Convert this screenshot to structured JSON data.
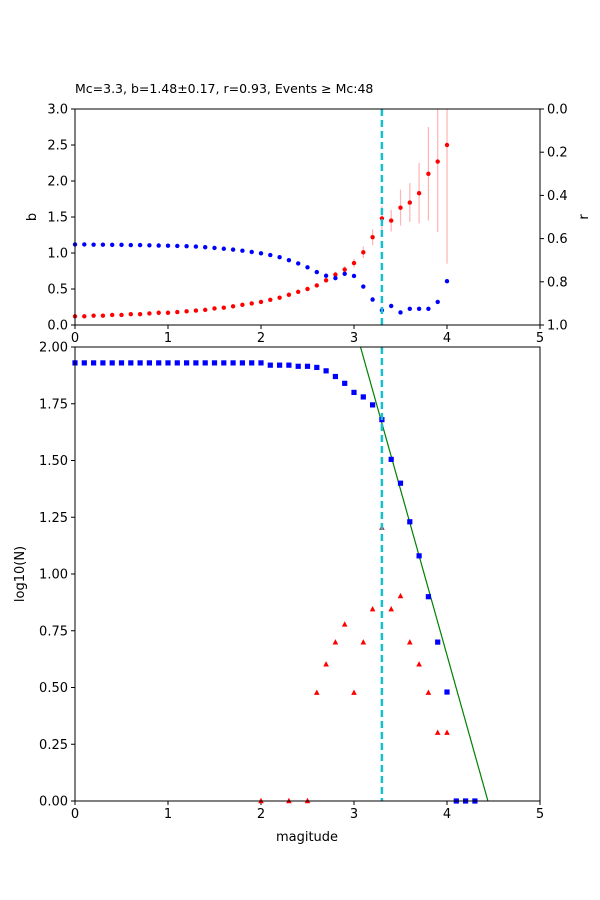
{
  "chart_data": [
    {
      "type": "scatter",
      "title": "Mc=3.3, b=1.48±0.17, r=0.93, Events ≥ Mc:48",
      "xlabel": "",
      "ylabel": "b",
      "ylabel_right": "r",
      "xlim": [
        0,
        5
      ],
      "ylim": [
        0,
        3
      ],
      "ylim_right": [
        1,
        0
      ],
      "x_ticks": [
        "0",
        "1",
        "2",
        "3",
        "4",
        "5"
      ],
      "y_ticks": [
        "0.0",
        "0.5",
        "1.0",
        "1.5",
        "2.0",
        "2.5",
        "3.0"
      ],
      "y_ticks_right": [
        "0.0",
        "0.2",
        "0.4",
        "0.6",
        "0.8",
        "1.0"
      ],
      "mc": 3.3,
      "mc_color": "#17becf",
      "series": [
        {
          "color": "#ff0000",
          "marker": "circle",
          "axis": "left",
          "x": [
            0.0,
            0.1,
            0.2,
            0.3,
            0.4,
            0.5,
            0.6,
            0.7,
            0.8,
            0.9,
            1.0,
            1.1,
            1.2,
            1.3,
            1.4,
            1.5,
            1.6,
            1.7,
            1.8,
            1.9,
            2.0,
            2.1,
            2.2,
            2.3,
            2.4,
            2.5,
            2.6,
            2.7,
            2.8,
            2.9,
            3.0,
            3.1,
            3.2,
            3.3,
            3.4,
            3.5,
            3.6,
            3.7,
            3.8,
            3.9,
            4.0
          ],
          "y": [
            0.12,
            0.12,
            0.13,
            0.13,
            0.14,
            0.14,
            0.15,
            0.15,
            0.16,
            0.17,
            0.17,
            0.18,
            0.19,
            0.2,
            0.21,
            0.23,
            0.24,
            0.26,
            0.28,
            0.3,
            0.32,
            0.35,
            0.38,
            0.42,
            0.46,
            0.5,
            0.55,
            0.62,
            0.7,
            0.77,
            0.86,
            1.01,
            1.22,
            1.48,
            1.45,
            1.63,
            1.7,
            1.83,
            2.1,
            2.27,
            2.5
          ],
          "yerr": [
            0.003,
            0.003,
            0.003,
            0.003,
            0.004,
            0.004,
            0.004,
            0.004,
            0.004,
            0.005,
            0.005,
            0.005,
            0.005,
            0.006,
            0.006,
            0.007,
            0.007,
            0.008,
            0.009,
            0.01,
            0.01,
            0.012,
            0.014,
            0.016,
            0.018,
            0.02,
            0.025,
            0.03,
            0.04,
            0.05,
            0.06,
            0.08,
            0.11,
            0.17,
            0.15,
            0.25,
            0.27,
            0.42,
            0.65,
            0.98,
            1.65
          ]
        },
        {
          "color": "#0000ff",
          "marker": "circle",
          "axis": "right",
          "x": [
            0.0,
            0.1,
            0.2,
            0.3,
            0.4,
            0.5,
            0.6,
            0.7,
            0.8,
            0.9,
            1.0,
            1.1,
            1.2,
            1.3,
            1.4,
            1.5,
            1.6,
            1.7,
            1.8,
            1.9,
            2.0,
            2.1,
            2.2,
            2.3,
            2.4,
            2.5,
            2.6,
            2.7,
            2.8,
            2.9,
            3.0,
            3.1,
            3.2,
            3.3,
            3.4,
            3.5,
            3.6,
            3.7,
            3.8,
            3.9,
            4.0
          ],
          "y": [
            0.627,
            0.627,
            0.628,
            0.628,
            0.629,
            0.629,
            0.63,
            0.63,
            0.631,
            0.632,
            0.633,
            0.634,
            0.635,
            0.637,
            0.64,
            0.643,
            0.647,
            0.651,
            0.656,
            0.662,
            0.668,
            0.676,
            0.686,
            0.7,
            0.715,
            0.733,
            0.755,
            0.772,
            0.783,
            0.763,
            0.773,
            0.822,
            0.882,
            0.932,
            0.912,
            0.942,
            0.925,
            0.925,
            0.925,
            0.893,
            0.797
          ]
        }
      ]
    },
    {
      "type": "scatter",
      "title": "",
      "xlabel": "magitude",
      "ylabel": "log10(N)",
      "xlim": [
        0,
        5
      ],
      "ylim": [
        0,
        2
      ],
      "x_ticks": [
        "0",
        "1",
        "2",
        "3",
        "4",
        "5"
      ],
      "y_ticks": [
        "0.00",
        "0.25",
        "0.50",
        "0.75",
        "1.00",
        "1.25",
        "1.50",
        "1.75",
        "2.00"
      ],
      "mc": 3.3,
      "mc_color": "#17becf",
      "fit_line": {
        "x": [
          3.07,
          4.44
        ],
        "y": [
          2.0,
          0.0
        ],
        "color": "#008000"
      },
      "series": [
        {
          "color": "#0000ff",
          "marker": "square",
          "x": [
            0.0,
            0.1,
            0.2,
            0.3,
            0.4,
            0.5,
            0.6,
            0.7,
            0.8,
            0.9,
            1.0,
            1.1,
            1.2,
            1.3,
            1.4,
            1.5,
            1.6,
            1.7,
            1.8,
            1.9,
            2.0,
            2.1,
            2.2,
            2.3,
            2.4,
            2.5,
            2.6,
            2.7,
            2.8,
            2.9,
            3.0,
            3.1,
            3.2,
            3.3,
            3.4,
            3.5,
            3.6,
            3.7,
            3.8,
            3.9,
            4.0,
            4.1,
            4.2,
            4.3
          ],
          "y": [
            1.93,
            1.93,
            1.93,
            1.93,
            1.93,
            1.93,
            1.93,
            1.93,
            1.93,
            1.93,
            1.93,
            1.93,
            1.93,
            1.93,
            1.93,
            1.93,
            1.93,
            1.93,
            1.93,
            1.93,
            1.93,
            1.92,
            1.92,
            1.92,
            1.915,
            1.915,
            1.91,
            1.895,
            1.87,
            1.84,
            1.8,
            1.78,
            1.745,
            1.68,
            1.505,
            1.4,
            1.23,
            1.08,
            0.9,
            0.7,
            0.48,
            0.0,
            0.0,
            0.0
          ]
        },
        {
          "color": "#ff0000",
          "marker": "triangle",
          "x": [
            2.0,
            2.3,
            2.5,
            2.6,
            2.7,
            2.8,
            2.9,
            3.0,
            3.1,
            3.2,
            3.3,
            3.4,
            3.5,
            3.6,
            3.7,
            3.8,
            3.9,
            4.0
          ],
          "y": [
            0.0,
            0.0,
            0.0,
            0.477,
            0.602,
            0.699,
            0.778,
            0.477,
            0.699,
            0.845,
            1.204,
            0.845,
            0.903,
            0.699,
            0.602,
            0.477,
            0.301,
            0.301
          ]
        }
      ]
    }
  ]
}
